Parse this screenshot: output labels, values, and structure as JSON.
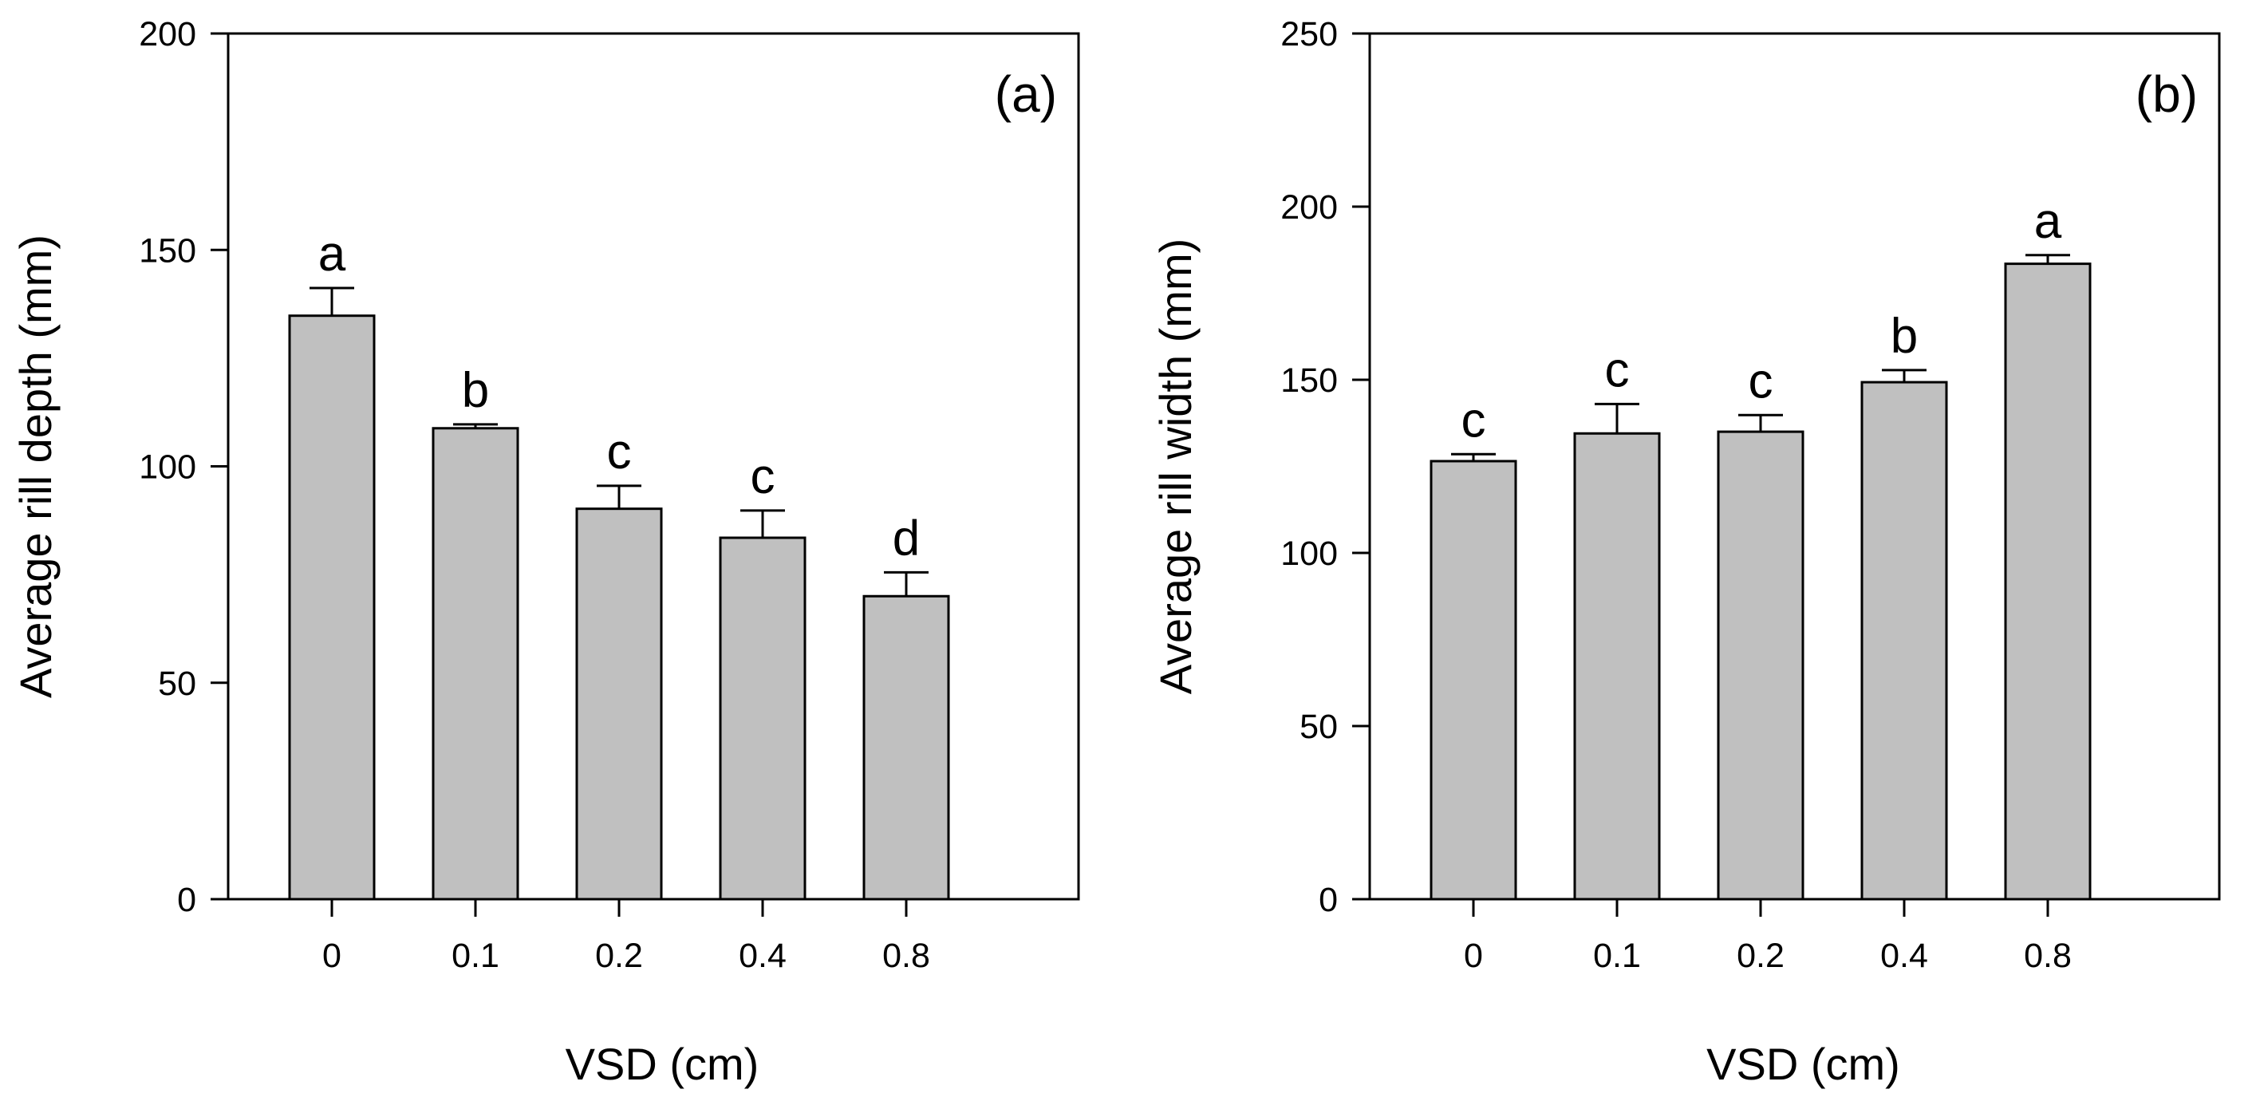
{
  "chart_data": [
    {
      "type": "bar",
      "panel_label": "(a)",
      "categories": [
        "0",
        "0.1",
        "0.2",
        "0.4",
        "0.8"
      ],
      "values": [
        134.8,
        108.8,
        90.2,
        83.5,
        70.0
      ],
      "errors": [
        6.4,
        0.9,
        5.3,
        6.3,
        5.5
      ],
      "letters": [
        "a",
        "b",
        "c",
        "c",
        "d"
      ],
      "xlabel": "VSD (cm)",
      "ylabel": "Average rill depth (mm)",
      "ylim": [
        0,
        200
      ],
      "yticks": [
        0,
        50,
        100,
        150,
        200
      ],
      "bar_color": "#c0c0c0"
    },
    {
      "type": "bar",
      "panel_label": "(b)",
      "categories": [
        "0",
        "0.1",
        "0.2",
        "0.4",
        "0.8"
      ],
      "values": [
        126.5,
        134.5,
        135.0,
        149.3,
        183.5
      ],
      "errors": [
        2.0,
        8.5,
        4.8,
        3.5,
        2.5
      ],
      "letters": [
        "c",
        "c",
        "c",
        "b",
        "a"
      ],
      "xlabel": "VSD (cm)",
      "ylabel": "Average rill width (mm)",
      "ylim": [
        0,
        250
      ],
      "yticks": [
        0,
        50,
        100,
        150,
        200,
        250
      ],
      "bar_color": "#c0c0c0"
    }
  ]
}
